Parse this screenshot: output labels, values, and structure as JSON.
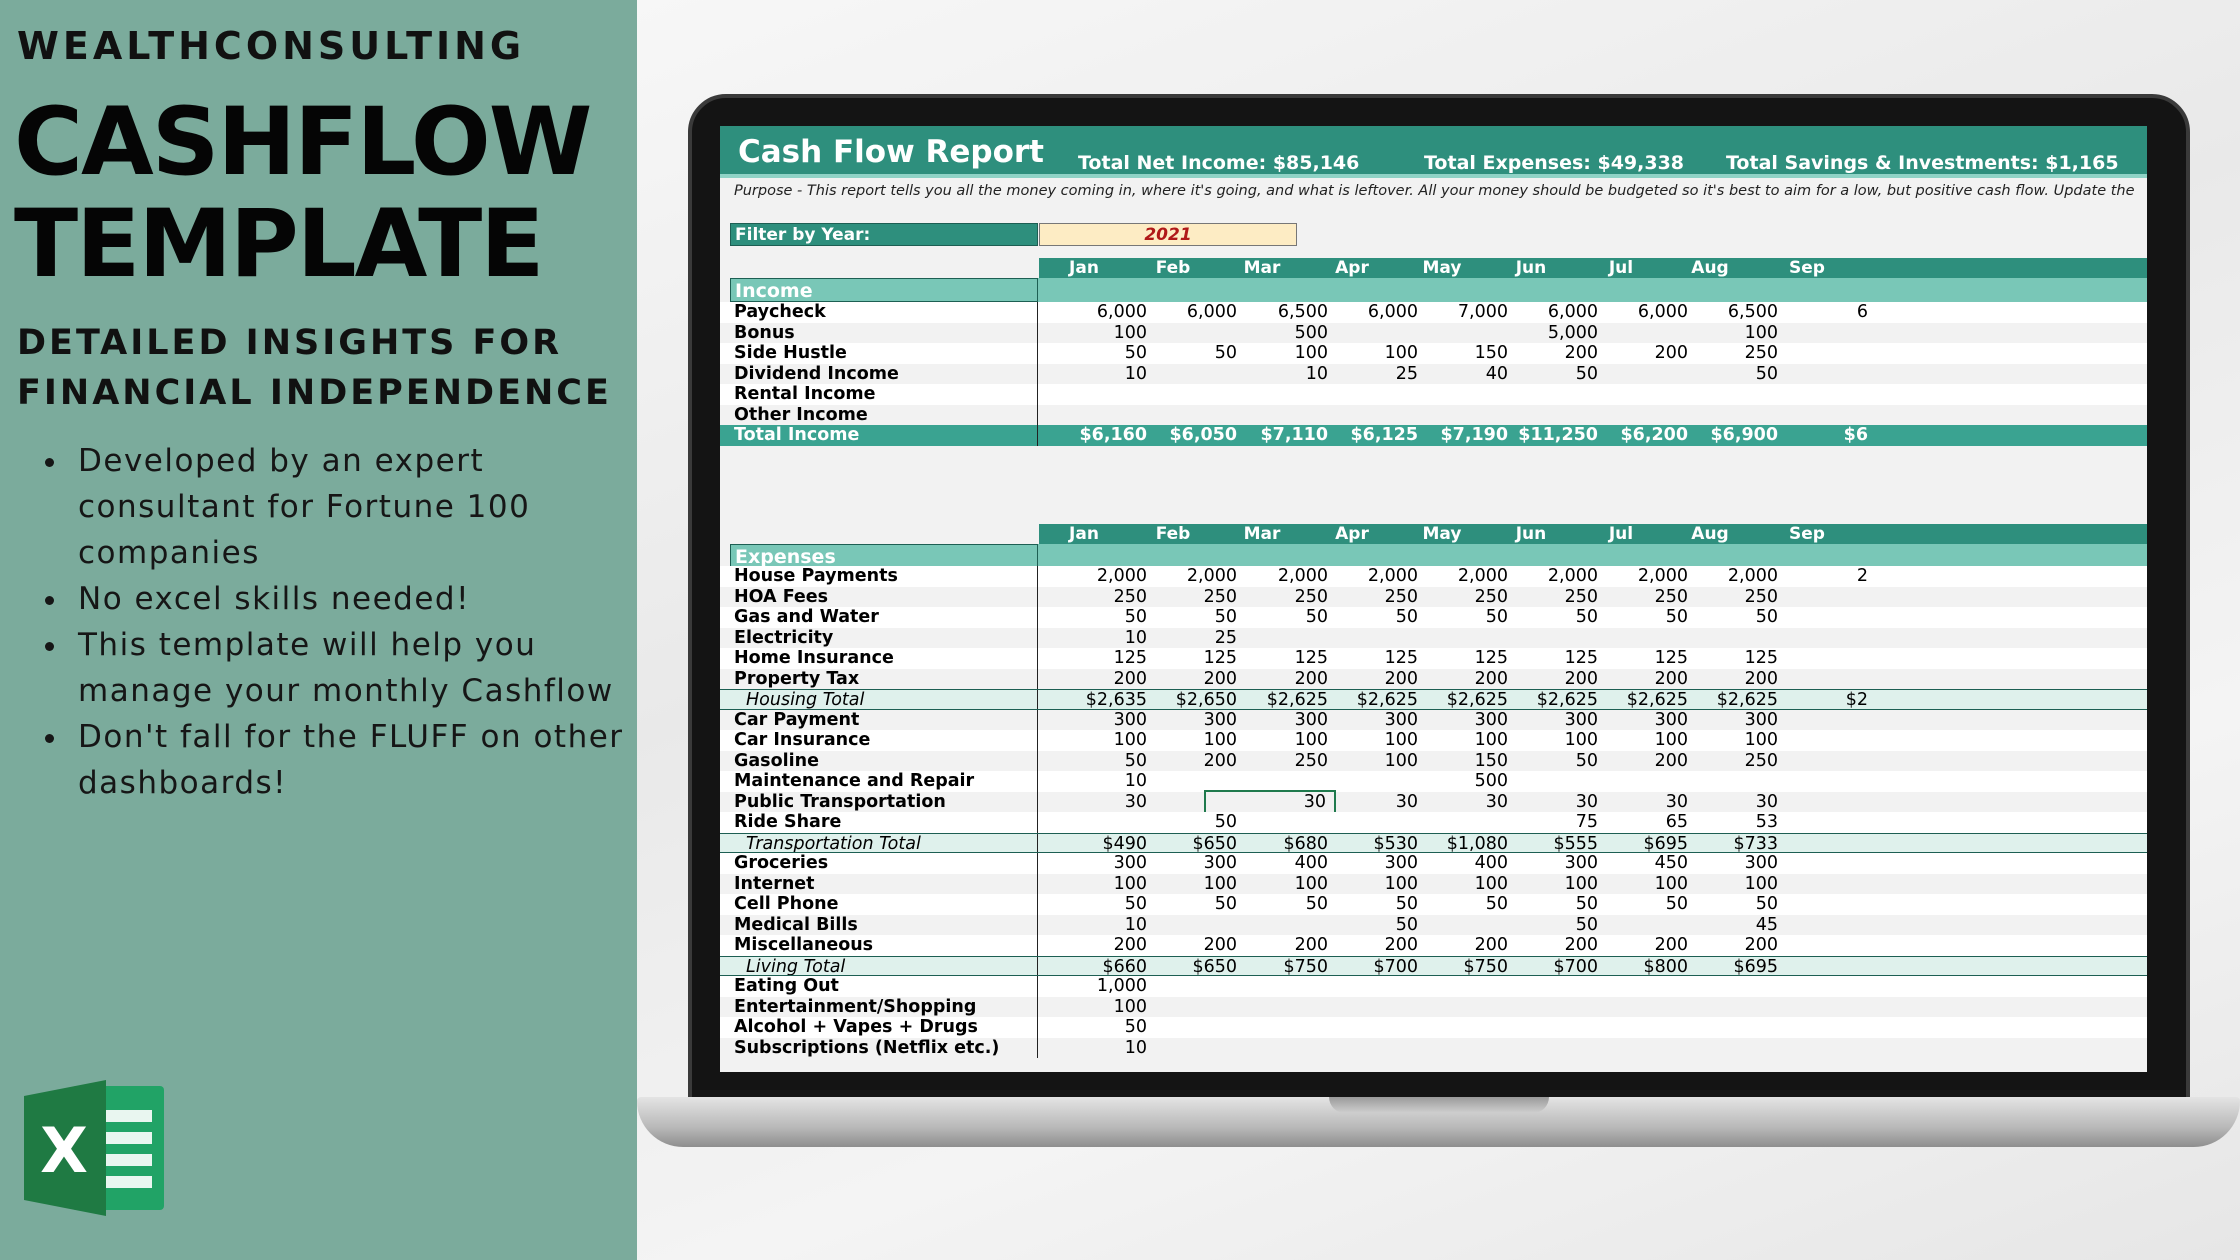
{
  "promo": {
    "brand": "WEALTHCONSULTING",
    "title_line1": "CASHFLOW",
    "title_line2": "TEMPLATE",
    "subtitle_line1": "DETAILED INSIGHTS FOR",
    "subtitle_line2": "FINANCIAL INDEPENDENCE",
    "bullets": [
      "Developed by an expert consultant for Fortune 100 companies",
      "No excel skills needed!",
      "This template will help you manage your monthly Cashflow",
      "Don't fall for the FLUFF on other dashboards!"
    ],
    "logo_icon": "excel-logo-icon",
    "logo_color": "#1f7a43"
  },
  "report": {
    "title": "Cash Flow Report",
    "total_net_income": "Total Net Income: $85,146",
    "total_expenses": "Total Expenses: $49,338",
    "total_savings": "Total Savings & Investments: $1,165",
    "purpose": "Purpose - This report tells you all the money coming in, where it's going, and what is leftover. All your money should be budgeted so it's best to aim for a low, but positive cash flow. Update the",
    "filter_label": "Filter by Year:",
    "filter_value": "2021",
    "accent_color": "#2e8f7d",
    "months": [
      "Jan",
      "Feb",
      "Mar",
      "Apr",
      "May",
      "Jun",
      "Jul",
      "Aug",
      "Sep"
    ]
  },
  "income": {
    "header": "Income",
    "rows": [
      {
        "label": "Paycheck",
        "values": [
          "6,000",
          "6,000",
          "6,500",
          "6,000",
          "7,000",
          "6,000",
          "6,000",
          "6,500",
          "6"
        ]
      },
      {
        "label": "Bonus",
        "values": [
          "100",
          "",
          "500",
          "",
          "",
          "5,000",
          "",
          "100",
          ""
        ]
      },
      {
        "label": "Side Hustle",
        "values": [
          "50",
          "50",
          "100",
          "100",
          "150",
          "200",
          "200",
          "250",
          ""
        ]
      },
      {
        "label": "Dividend Income",
        "values": [
          "10",
          "",
          "10",
          "25",
          "40",
          "50",
          "",
          "50",
          ""
        ]
      },
      {
        "label": "Rental Income",
        "values": [
          "",
          "",
          "",
          "",
          "",
          "",
          "",
          "",
          ""
        ]
      },
      {
        "label": "Other Income",
        "values": [
          "",
          "",
          "",
          "",
          "",
          "",
          "",
          "",
          ""
        ]
      },
      {
        "label": "Total Income",
        "type": "total",
        "values": [
          "$6,160",
          "$6,050",
          "$7,110",
          "$6,125",
          "$7,190",
          "$11,250",
          "$6,200",
          "$6,900",
          "$6"
        ]
      }
    ]
  },
  "expenses": {
    "header": "Expenses",
    "rows": [
      {
        "label": "House Payments",
        "values": [
          "2,000",
          "2,000",
          "2,000",
          "2,000",
          "2,000",
          "2,000",
          "2,000",
          "2,000",
          "2"
        ]
      },
      {
        "label": "HOA Fees",
        "values": [
          "250",
          "250",
          "250",
          "250",
          "250",
          "250",
          "250",
          "250",
          ""
        ]
      },
      {
        "label": "Gas and Water",
        "values": [
          "50",
          "50",
          "50",
          "50",
          "50",
          "50",
          "50",
          "50",
          ""
        ]
      },
      {
        "label": "Electricity",
        "values": [
          "10",
          "25",
          "",
          "",
          "",
          "",
          "",
          "",
          ""
        ]
      },
      {
        "label": "Home Insurance",
        "values": [
          "125",
          "125",
          "125",
          "125",
          "125",
          "125",
          "125",
          "125",
          ""
        ]
      },
      {
        "label": "Property Tax",
        "values": [
          "200",
          "200",
          "200",
          "200",
          "200",
          "200",
          "200",
          "200",
          ""
        ]
      },
      {
        "label": "Housing Total",
        "type": "subtotal",
        "values": [
          "$2,635",
          "$2,650",
          "$2,625",
          "$2,625",
          "$2,625",
          "$2,625",
          "$2,625",
          "$2,625",
          "$2"
        ]
      },
      {
        "label": "Car Payment",
        "values": [
          "300",
          "300",
          "300",
          "300",
          "300",
          "300",
          "300",
          "300",
          ""
        ]
      },
      {
        "label": "Car Insurance",
        "values": [
          "100",
          "100",
          "100",
          "100",
          "100",
          "100",
          "100",
          "100",
          ""
        ]
      },
      {
        "label": "Gasoline",
        "values": [
          "50",
          "200",
          "250",
          "100",
          "150",
          "50",
          "200",
          "250",
          ""
        ]
      },
      {
        "label": "Maintenance and Repair",
        "values": [
          "10",
          "",
          "",
          "",
          "500",
          "",
          "",
          "",
          ""
        ]
      },
      {
        "label": "Public Transportation",
        "values": [
          "30",
          "",
          "30",
          "30",
          "30",
          "30",
          "30",
          "30",
          ""
        ],
        "selected_index": 2
      },
      {
        "label": "Ride Share",
        "values": [
          "",
          "50",
          "",
          "",
          "",
          "75",
          "65",
          "53",
          ""
        ]
      },
      {
        "label": "Transportation Total",
        "type": "subtotal",
        "values": [
          "$490",
          "$650",
          "$680",
          "$530",
          "$1,080",
          "$555",
          "$695",
          "$733",
          ""
        ]
      },
      {
        "label": "Groceries",
        "values": [
          "300",
          "300",
          "400",
          "300",
          "400",
          "300",
          "450",
          "300",
          ""
        ]
      },
      {
        "label": "Internet",
        "values": [
          "100",
          "100",
          "100",
          "100",
          "100",
          "100",
          "100",
          "100",
          ""
        ]
      },
      {
        "label": "Cell Phone",
        "values": [
          "50",
          "50",
          "50",
          "50",
          "50",
          "50",
          "50",
          "50",
          ""
        ]
      },
      {
        "label": "Medical Bills",
        "values": [
          "10",
          "",
          "",
          "50",
          "",
          "50",
          "",
          "45",
          ""
        ]
      },
      {
        "label": "Miscellaneous",
        "values": [
          "200",
          "200",
          "200",
          "200",
          "200",
          "200",
          "200",
          "200",
          ""
        ]
      },
      {
        "label": "Living Total",
        "type": "subtotal",
        "values": [
          "$660",
          "$650",
          "$750",
          "$700",
          "$750",
          "$700",
          "$800",
          "$695",
          ""
        ]
      },
      {
        "label": "Eating Out",
        "values": [
          "1,000",
          "",
          "",
          "",
          "",
          "",
          "",
          "",
          ""
        ]
      },
      {
        "label": "Entertainment/Shopping",
        "values": [
          "100",
          "",
          "",
          "",
          "",
          "",
          "",
          "",
          ""
        ]
      },
      {
        "label": "Alcohol + Vapes + Drugs",
        "values": [
          "50",
          "",
          "",
          "",
          "",
          "",
          "",
          "",
          ""
        ]
      },
      {
        "label": "Subscriptions (Netflix etc.)",
        "values": [
          "10",
          "",
          "",
          "",
          "",
          "",
          "",
          "",
          ""
        ]
      }
    ]
  }
}
